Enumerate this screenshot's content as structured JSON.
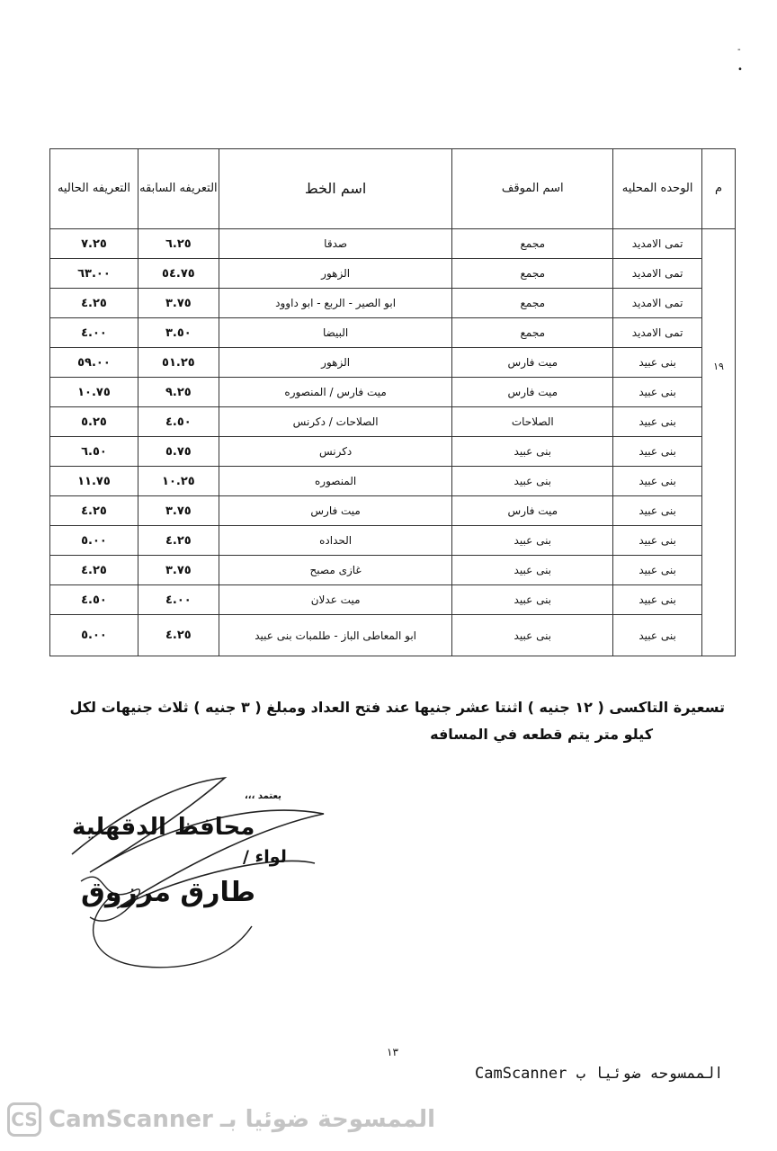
{
  "table": {
    "headers": {
      "m": "م",
      "unit": "الوحده المحليه",
      "stop": "اسم الموقف",
      "line": "اسم الخط",
      "prev": "التعريفه السابقه",
      "curr": "التعريفه الحاليه"
    },
    "serial": "١٩",
    "rows": [
      [
        "تمى الامديد",
        "مجمع",
        "صدقا",
        "٦.٢٥",
        "٧.٢٥"
      ],
      [
        "تمى الامديد",
        "مجمع",
        "الزهور",
        "٥٤.٧٥",
        "٦٣.٠٠"
      ],
      [
        "تمى الامديد",
        "مجمع",
        "ابو الصير - الربع - ابو داوود",
        "٣.٧٥",
        "٤.٢٥"
      ],
      [
        "تمى الامديد",
        "مجمع",
        "البيضا",
        "٣.٥٠",
        "٤.٠٠"
      ],
      [
        "بنى عبيد",
        "ميت فارس",
        "الزهور",
        "٥١.٢٥",
        "٥٩.٠٠"
      ],
      [
        "بنى عبيد",
        "ميت فارس",
        "ميت فارس / المنصوره",
        "٩.٢٥",
        "١٠.٧٥"
      ],
      [
        "بنى عبيد",
        "الصلاحات",
        "الصلاحات / دكرنس",
        "٤.٥٠",
        "٥.٢٥"
      ],
      [
        "بنى عبيد",
        "بنى عبيد",
        "دكرنس",
        "٥.٧٥",
        "٦.٥٠"
      ],
      [
        "بنى عبيد",
        "بنى عبيد",
        "المنصوره",
        "١٠.٢٥",
        "١١.٧٥"
      ],
      [
        "بنى عبيد",
        "ميت فارس",
        "ميت فارس",
        "٣.٧٥",
        "٤.٢٥"
      ],
      [
        "بنى عبيد",
        "بنى عبيد",
        "الحداده",
        "٤.٢٥",
        "٥.٠٠"
      ],
      [
        "بنى عبيد",
        "بنى عبيد",
        "غازى مصبح",
        "٣.٧٥",
        "٤.٢٥"
      ],
      [
        "بنى عبيد",
        "بنى عبيد",
        "ميت عدلان",
        "٤.٠٠",
        "٤.٥٠"
      ],
      [
        "بنى عبيد",
        "بنى عبيد",
        "ابو المعاطى الباز - طلمبات بنى عبيد",
        "٤.٢٥",
        "٥.٠٠"
      ]
    ]
  },
  "note": {
    "line1": "تسعيرة التاكسى ( ١٢ جنيه ) اثنتا عشر جنيها عند فتح العداد ومبلغ ( ٣ جنيه ) ثلاث جنيهات لكل",
    "line2": "كيلو متر يتم قطعه في المسافه"
  },
  "signature": {
    "approve": "يعتمد ،،،",
    "title": "محافظ الدقهلية",
    "rank": "لواء /",
    "name": "طارق مرزوق"
  },
  "page_number": "١٣",
  "handwritten_scan_note": "الممسوحه ضوئيا ب CamScanner",
  "watermark": {
    "logo": "CS",
    "text": "CamScanner",
    "arabic": "الممسوحة ضوئيا بـ"
  }
}
